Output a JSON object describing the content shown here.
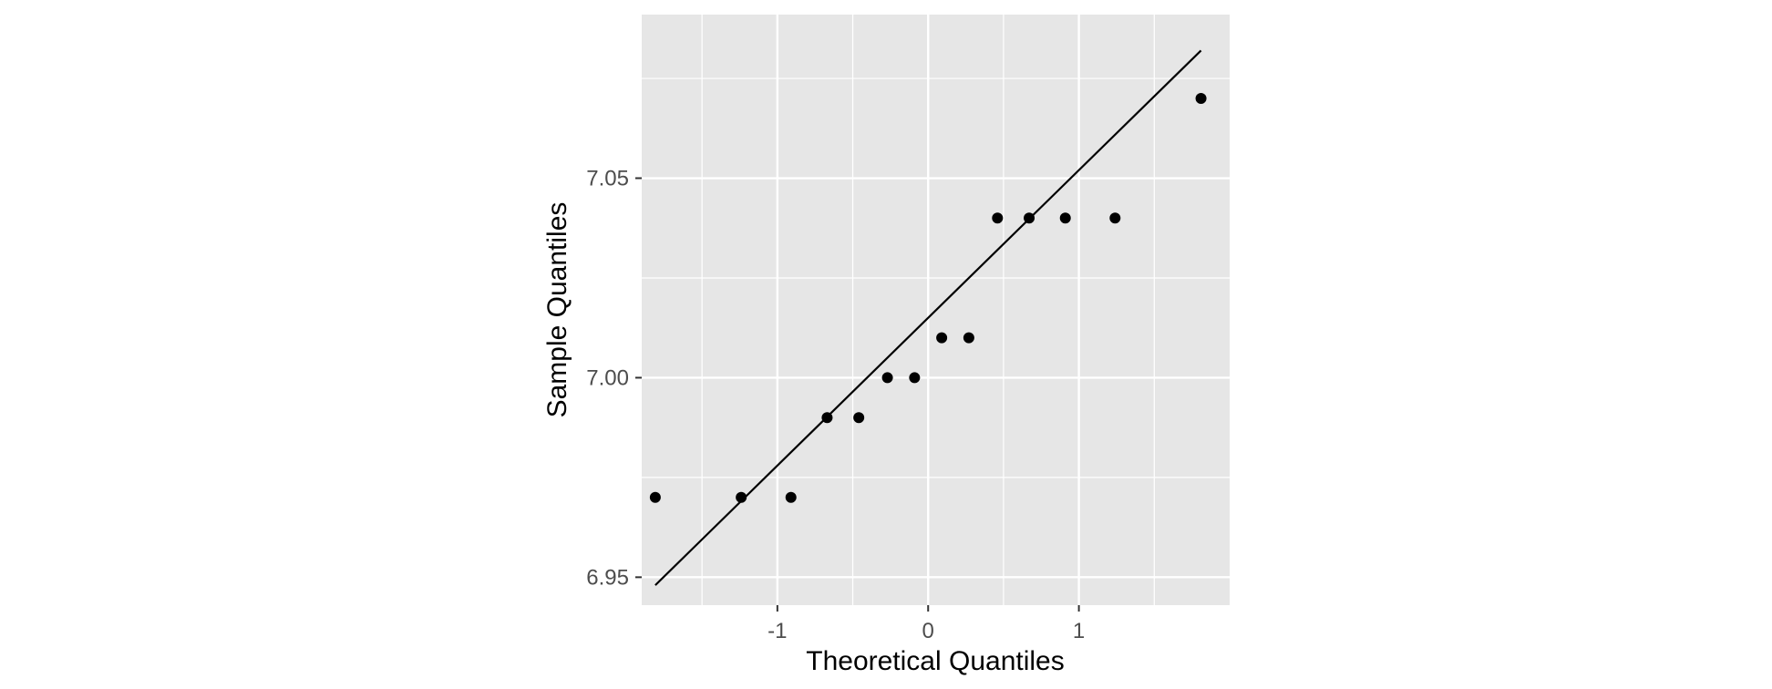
{
  "chart_data": {
    "type": "scatter",
    "title": "",
    "xlabel": "Theoretical Quantiles",
    "ylabel": "Sample Quantiles",
    "xlim": [
      -1.9,
      2.0
    ],
    "ylim": [
      6.943,
      7.091
    ],
    "x_ticks": [
      -1,
      0,
      1
    ],
    "x_tick_labels": [
      "-1",
      "0",
      "1"
    ],
    "y_ticks": [
      6.95,
      7.0,
      7.05
    ],
    "y_tick_labels": [
      "6.95",
      "7.00",
      "7.05"
    ],
    "grid": true,
    "legend": "none",
    "panel_color": "#e6e6e6",
    "point_color": "#000000",
    "points": {
      "x": [
        -1.81,
        -1.24,
        -0.91,
        -0.67,
        -0.46,
        -0.27,
        -0.09,
        0.09,
        0.27,
        0.46,
        0.67,
        0.91,
        1.24,
        1.81
      ],
      "y": [
        6.97,
        6.97,
        6.97,
        6.99,
        6.99,
        7.0,
        7.0,
        7.01,
        7.01,
        7.04,
        7.04,
        7.04,
        7.04,
        7.07
      ]
    },
    "reference_line": {
      "x": [
        -1.81,
        1.81
      ],
      "y": [
        6.948,
        7.082
      ]
    }
  }
}
